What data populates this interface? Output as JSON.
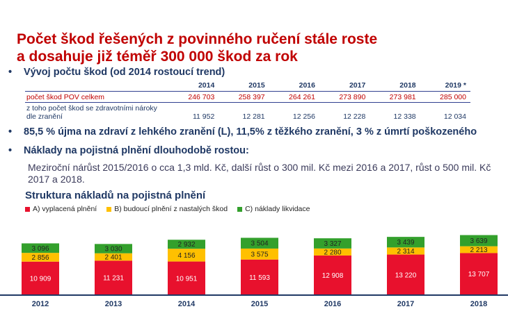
{
  "title_line1": "Počet škod řešených z povinného ručení stále roste",
  "title_line2": "a dosahuje již téměř 300 000 škod za rok",
  "bullet_marker": "•",
  "bullet1": "Vývoj počtu škod (od 2014 rostoucí trend)",
  "table": {
    "headers": [
      "",
      "2014",
      "2015",
      "2016",
      "2017",
      "2018",
      "2019 *"
    ],
    "row1": [
      "počet škod POV celkem",
      "246 703",
      "258 397",
      "264 261",
      "273 890",
      "273 981",
      "285 000"
    ],
    "row2_label_line1": "z toho počet škod se zdravotními nároky",
    "row2_label_line2": "dle zranění",
    "row2_values": [
      "11 952",
      "12 281",
      "12 256",
      "12 228",
      "12 338",
      "12 034"
    ]
  },
  "bullet2": "85,5 % újma na zdraví z lehkého zranění (L), 11,5% z těžkého zranění, 3 % z úmrtí poškozeného",
  "bullet3": "Náklady na pojistná plnění dlouhodobě rostou:",
  "paragraph": "Meziroční nárůst 2015/2016 o cca 1,3 mld. Kč, další růst o 300 mil. Kč mezi  2016 a 2017, růst o 500 mil. Kč 2017 a 2018.",
  "chart_data": {
    "type": "bar",
    "stacked": true,
    "title": "Struktura nákladů na pojistná plnění",
    "categories": [
      "2012",
      "2013",
      "2014",
      "2015",
      "2016",
      "2017",
      "2018"
    ],
    "series": [
      {
        "name": "A) vyplacená plnění",
        "color": "#e8112d",
        "values": [
          10909,
          11231,
          10951,
          11593,
          12908,
          13220,
          13707
        ],
        "labels": [
          "10 909",
          "11 231",
          "10 951",
          "11 593",
          "12 908",
          "13 220",
          "13 707"
        ]
      },
      {
        "name": "B) budoucí plnění z nastalých škod",
        "color": "#ffc000",
        "values": [
          2856,
          2401,
          4156,
          3575,
          2280,
          2314,
          2213
        ],
        "labels": [
          "2 856",
          "2 401",
          "4 156",
          "3 575",
          "2 280",
          "2 314",
          "2 213"
        ]
      },
      {
        "name": "C) náklady likvidace",
        "color": "#33a02c",
        "values": [
          3096,
          3030,
          2932,
          3504,
          3327,
          3439,
          3639
        ],
        "labels": [
          "3 096",
          "3 030",
          "2 932",
          "3 504",
          "3 327",
          "3 439",
          "3 639"
        ]
      }
    ],
    "legend_position": "top-left",
    "grid": false
  }
}
